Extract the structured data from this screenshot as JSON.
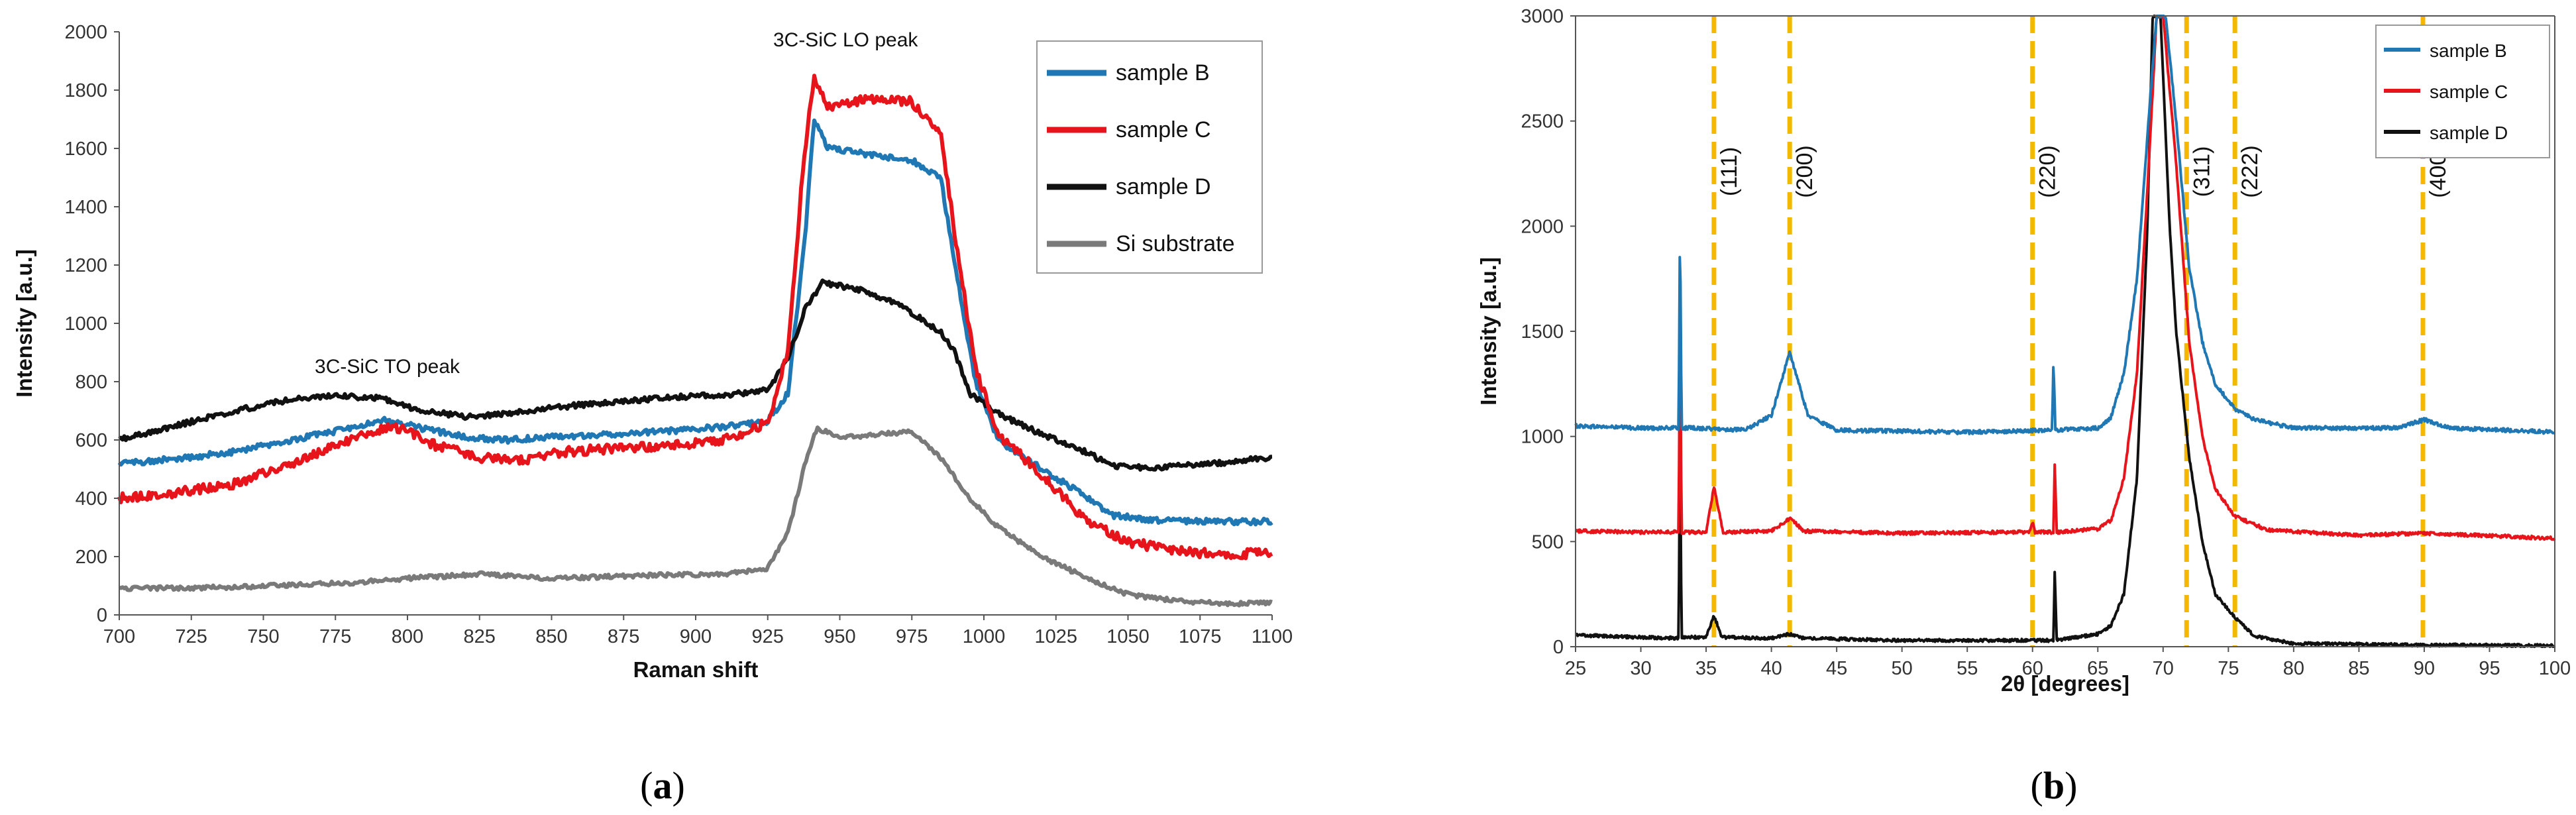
{
  "panel_a_label": {
    "open": "(",
    "letter": "a",
    "close": ")"
  },
  "panel_b_label": {
    "open": "(",
    "letter": "b",
    "close": ")"
  },
  "chart_data": [
    {
      "type": "line",
      "title": "",
      "xlabel": "Raman shift",
      "ylabel": "Intensity [a.u.]",
      "xlim": [
        700,
        1100
      ],
      "ylim": [
        0,
        2000
      ],
      "xticks": [
        700,
        725,
        750,
        775,
        800,
        825,
        850,
        875,
        900,
        925,
        950,
        975,
        1000,
        1025,
        1050,
        1075,
        1100
      ],
      "yticks": [
        0,
        200,
        400,
        600,
        800,
        1000,
        1200,
        1400,
        1600,
        1800,
        2000
      ],
      "grid": false,
      "legend": "top-right",
      "annotations": [
        {
          "text": "3C-SiC TO peak",
          "x": 793,
          "y": 830
        },
        {
          "text": "3C-SiC LO peak",
          "x": 952,
          "y": 1950
        }
      ],
      "series": [
        {
          "name": "sample B",
          "color": "#1f77b4",
          "noise": 10,
          "points": [
            [
              700,
              520
            ],
            [
              720,
              535
            ],
            [
              740,
              560
            ],
            [
              760,
              600
            ],
            [
              780,
              640
            ],
            [
              792,
              670
            ],
            [
              805,
              640
            ],
            [
              820,
              610
            ],
            [
              835,
              600
            ],
            [
              850,
              610
            ],
            [
              870,
              620
            ],
            [
              890,
              630
            ],
            [
              910,
              645
            ],
            [
              925,
              665
            ],
            [
              932,
              760
            ],
            [
              938,
              1300
            ],
            [
              941,
              1700
            ],
            [
              946,
              1600
            ],
            [
              960,
              1580
            ],
            [
              975,
              1560
            ],
            [
              985,
              1500
            ],
            [
              990,
              1200
            ],
            [
              997,
              800
            ],
            [
              1005,
              600
            ],
            [
              1020,
              500
            ],
            [
              1035,
              410
            ],
            [
              1045,
              340
            ],
            [
              1060,
              325
            ],
            [
              1080,
              320
            ],
            [
              1100,
              320
            ]
          ]
        },
        {
          "name": "sample C",
          "color": "#e8141b",
          "noise": 16,
          "points": [
            [
              700,
              400
            ],
            [
              720,
              420
            ],
            [
              740,
              450
            ],
            [
              760,
              520
            ],
            [
              780,
              600
            ],
            [
              795,
              650
            ],
            [
              810,
              580
            ],
            [
              825,
              540
            ],
            [
              840,
              530
            ],
            [
              855,
              560
            ],
            [
              870,
              570
            ],
            [
              890,
              580
            ],
            [
              910,
              600
            ],
            [
              925,
              660
            ],
            [
              932,
              900
            ],
            [
              937,
              1500
            ],
            [
              941,
              1850
            ],
            [
              946,
              1740
            ],
            [
              960,
              1770
            ],
            [
              975,
              1760
            ],
            [
              985,
              1650
            ],
            [
              990,
              1300
            ],
            [
              997,
              850
            ],
            [
              1005,
              620
            ],
            [
              1020,
              480
            ],
            [
              1035,
              330
            ],
            [
              1050,
              250
            ],
            [
              1070,
              215
            ],
            [
              1085,
              210
            ],
            [
              1100,
              210
            ]
          ]
        },
        {
          "name": "sample D",
          "color": "#111111",
          "noise": 9,
          "points": [
            [
              700,
              600
            ],
            [
              720,
              650
            ],
            [
              740,
              700
            ],
            [
              760,
              740
            ],
            [
              775,
              750
            ],
            [
              790,
              745
            ],
            [
              805,
              700
            ],
            [
              820,
              680
            ],
            [
              835,
              690
            ],
            [
              850,
              710
            ],
            [
              870,
              730
            ],
            [
              890,
              745
            ],
            [
              910,
              755
            ],
            [
              925,
              770
            ],
            [
              932,
              880
            ],
            [
              938,
              1050
            ],
            [
              944,
              1140
            ],
            [
              955,
              1120
            ],
            [
              970,
              1070
            ],
            [
              985,
              970
            ],
            [
              990,
              900
            ],
            [
              995,
              760
            ],
            [
              1005,
              690
            ],
            [
              1020,
              620
            ],
            [
              1035,
              560
            ],
            [
              1045,
              510
            ],
            [
              1060,
              505
            ],
            [
              1080,
              520
            ],
            [
              1100,
              540
            ]
          ]
        },
        {
          "name": "Si substrate",
          "color": "#7a7a7a",
          "noise": 7,
          "points": [
            [
              700,
              90
            ],
            [
              740,
              95
            ],
            [
              780,
              110
            ],
            [
              800,
              125
            ],
            [
              825,
              140
            ],
            [
              850,
              125
            ],
            [
              880,
              135
            ],
            [
              910,
              140
            ],
            [
              925,
              160
            ],
            [
              932,
              280
            ],
            [
              938,
              520
            ],
            [
              942,
              640
            ],
            [
              950,
              610
            ],
            [
              960,
              615
            ],
            [
              975,
              630
            ],
            [
              985,
              540
            ],
            [
              995,
              400
            ],
            [
              1005,
              300
            ],
            [
              1020,
              200
            ],
            [
              1035,
              130
            ],
            [
              1050,
              70
            ],
            [
              1070,
              45
            ],
            [
              1085,
              38
            ],
            [
              1100,
              40
            ]
          ]
        }
      ]
    },
    {
      "type": "line",
      "title": "",
      "xlabel": "2θ [degrees]",
      "ylabel": "Intensity [a.u.]",
      "xlim": [
        25,
        100
      ],
      "ylim": [
        0,
        3000
      ],
      "xticks": [
        25,
        30,
        35,
        40,
        45,
        50,
        55,
        60,
        65,
        70,
        75,
        80,
        85,
        90,
        95,
        100
      ],
      "yticks": [
        0,
        500,
        1000,
        1500,
        2000,
        2500,
        3000
      ],
      "grid": false,
      "legend": "top-right",
      "reference_lines": [
        {
          "label": "(111)",
          "x": 35.6
        },
        {
          "label": "(200)",
          "x": 41.4
        },
        {
          "label": "(220)",
          "x": 60.0
        },
        {
          "label": "(311)",
          "x": 71.8
        },
        {
          "label": "(222)",
          "x": 75.5
        },
        {
          "label": "(400)",
          "x": 89.9
        }
      ],
      "reference_line_color": "#f5b800",
      "series": [
        {
          "name": "sample B",
          "color": "#1f77b4",
          "baseline": 1040,
          "noise": 9,
          "points": [
            [
              25,
              1050
            ],
            [
              30,
              1040
            ],
            [
              32.9,
              1040
            ],
            [
              33.0,
              2030
            ],
            [
              33.12,
              1040
            ],
            [
              34,
              1040
            ],
            [
              38,
              1030
            ],
            [
              40,
              1100
            ],
            [
              41.4,
              1400
            ],
            [
              42.8,
              1100
            ],
            [
              45,
              1030
            ],
            [
              55,
              1020
            ],
            [
              61.5,
              1030
            ],
            [
              61.6,
              1370
            ],
            [
              61.75,
              1030
            ],
            [
              65,
              1040
            ],
            [
              66,
              1090
            ],
            [
              67,
              1300
            ],
            [
              68,
              1750
            ],
            [
              69,
              2600
            ],
            [
              69.5,
              3000
            ],
            [
              70.2,
              3000
            ],
            [
              71,
              2500
            ],
            [
              72,
              1800
            ],
            [
              73,
              1450
            ],
            [
              74,
              1250
            ],
            [
              75.5,
              1130
            ],
            [
              77,
              1080
            ],
            [
              80,
              1040
            ],
            [
              88,
              1040
            ],
            [
              90,
              1080
            ],
            [
              92,
              1040
            ],
            [
              100,
              1020
            ]
          ]
        },
        {
          "name": "sample C",
          "color": "#e8141b",
          "baseline": 545,
          "noise": 8,
          "points": [
            [
              25,
              550
            ],
            [
              30,
              545
            ],
            [
              32.9,
              545
            ],
            [
              33.0,
              1570
            ],
            [
              33.12,
              545
            ],
            [
              35,
              545
            ],
            [
              35.6,
              760
            ],
            [
              36.3,
              545
            ],
            [
              40,
              550
            ],
            [
              41.4,
              610
            ],
            [
              42.5,
              550
            ],
            [
              50,
              540
            ],
            [
              59.8,
              545
            ],
            [
              60,
              590
            ],
            [
              60.2,
              545
            ],
            [
              61.6,
              545
            ],
            [
              61.7,
              880
            ],
            [
              61.85,
              545
            ],
            [
              65,
              560
            ],
            [
              66,
              600
            ],
            [
              67,
              800
            ],
            [
              68,
              1300
            ],
            [
              69,
              2400
            ],
            [
              69.5,
              3000
            ],
            [
              70,
              3000
            ],
            [
              71,
              2300
            ],
            [
              72,
              1450
            ],
            [
              73,
              1000
            ],
            [
              74,
              750
            ],
            [
              75.5,
              620
            ],
            [
              78,
              555
            ],
            [
              85,
              530
            ],
            [
              90,
              540
            ],
            [
              100,
              515
            ]
          ]
        },
        {
          "name": "sample D",
          "color": "#111111",
          "baseline": 45,
          "noise": 7,
          "points": [
            [
              25,
              55
            ],
            [
              30,
              45
            ],
            [
              32.9,
              40
            ],
            [
              33.0,
              1050
            ],
            [
              33.12,
              45
            ],
            [
              35,
              45
            ],
            [
              35.6,
              150
            ],
            [
              36.2,
              45
            ],
            [
              40,
              40
            ],
            [
              41.4,
              60
            ],
            [
              42.5,
              40
            ],
            [
              50,
              30
            ],
            [
              61.6,
              30
            ],
            [
              61.7,
              360
            ],
            [
              61.85,
              30
            ],
            [
              65,
              60
            ],
            [
              66,
              100
            ],
            [
              67,
              250
            ],
            [
              68,
              800
            ],
            [
              68.8,
              2000
            ],
            [
              69.2,
              3000
            ],
            [
              69.8,
              3000
            ],
            [
              70.5,
              2000
            ],
            [
              71,
              1500
            ],
            [
              72,
              900
            ],
            [
              73,
              500
            ],
            [
              74,
              250
            ],
            [
              75.5,
              140
            ],
            [
              77,
              50
            ],
            [
              80,
              15
            ],
            [
              90,
              8
            ],
            [
              100,
              5
            ]
          ]
        }
      ]
    }
  ]
}
